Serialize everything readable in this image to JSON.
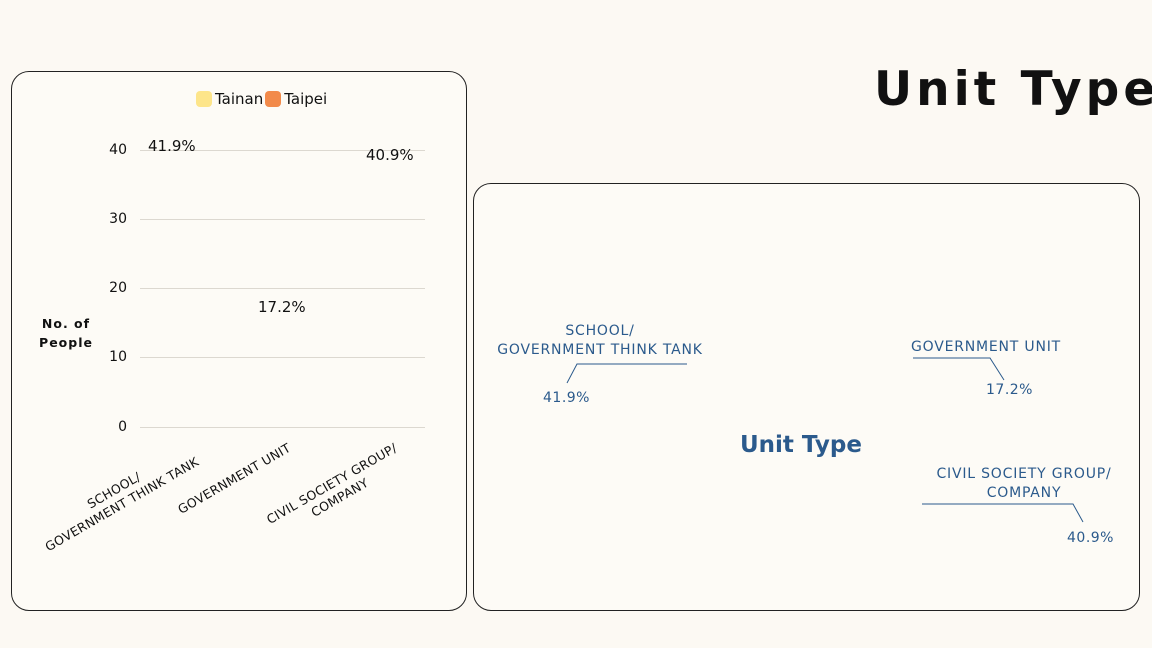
{
  "page_title": "Unit Type",
  "colors": {
    "text_dark": "#111111",
    "donut_text": "#2b5a8c",
    "tainan": "#fde58a",
    "taipei": "#f28a4a",
    "background": "#fcf9f3"
  },
  "chart_data": [
    {
      "type": "bar",
      "legend": [
        {
          "name": "Tainan",
          "color": "#fde58a"
        },
        {
          "name": "Taipei",
          "color": "#f28a4a"
        }
      ],
      "legend_position": "top",
      "ylabel": "No. of People",
      "yticks": [
        "40",
        "30",
        "20",
        "10",
        "0"
      ],
      "ylim": [
        0,
        40
      ],
      "grid": true,
      "categories": [
        {
          "line1": "SCHOOL/",
          "line2": "GOVERNMENT THINK TANK"
        },
        {
          "line1": "GOVERNMENT UNIT",
          "line2": ""
        },
        {
          "line1": "CIVIL SOCIETY GROUP/",
          "line2": "COMPANY"
        }
      ],
      "data_labels": [
        "41.9%",
        "17.2%",
        "40.9%"
      ]
    },
    {
      "type": "pie",
      "center_title": "Unit Type",
      "slices": [
        {
          "line1": "SCHOOL/",
          "line2": "GOVERNMENT THINK TANK",
          "pct_label": "41.9%",
          "value": 41.9
        },
        {
          "line1": "GOVERNMENT UNIT",
          "line2": "",
          "pct_label": "17.2%",
          "value": 17.2
        },
        {
          "line1": "CIVIL SOCIETY GROUP/",
          "line2": "COMPANY",
          "pct_label": "40.9%",
          "value": 40.9
        }
      ]
    }
  ]
}
